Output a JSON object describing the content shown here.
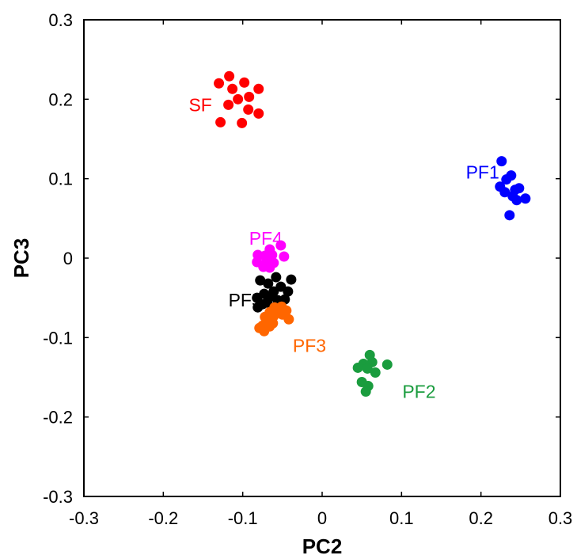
{
  "chart_data": {
    "type": "scatter",
    "title": "",
    "xlabel": "PC2",
    "ylabel": "PC3",
    "xlim": [
      -0.3,
      0.3
    ],
    "ylim": [
      -0.3,
      0.3
    ],
    "x_ticks": [
      -0.3,
      -0.2,
      -0.1,
      0,
      0.1,
      0.2,
      0.3
    ],
    "y_ticks": [
      -0.3,
      -0.2,
      -0.1,
      0,
      0.1,
      0.2,
      0.3
    ],
    "x_tick_labels": [
      "-0.3",
      "-0.2",
      "-0.1",
      "0",
      "0.1",
      "0.2",
      "0.3"
    ],
    "y_tick_labels": [
      "-0.3",
      "-0.2",
      "-0.1",
      "0",
      "0.1",
      "0.2",
      "0.3"
    ],
    "grid": false,
    "series": [
      {
        "name": "SF",
        "color": "#ff0000",
        "points": [
          [
            -0.13,
            0.22
          ],
          [
            -0.117,
            0.229
          ],
          [
            -0.113,
            0.213
          ],
          [
            -0.098,
            0.221
          ],
          [
            -0.08,
            0.213
          ],
          [
            -0.092,
            0.203
          ],
          [
            -0.106,
            0.2
          ],
          [
            -0.118,
            0.193
          ],
          [
            -0.093,
            0.187
          ],
          [
            -0.08,
            0.182
          ],
          [
            -0.128,
            0.171
          ],
          [
            -0.101,
            0.17
          ]
        ]
      },
      {
        "name": "PF1",
        "color": "#0000ff",
        "points": [
          [
            0.226,
            0.122
          ],
          [
            0.238,
            0.104
          ],
          [
            0.232,
            0.099
          ],
          [
            0.243,
            0.086
          ],
          [
            0.224,
            0.09
          ],
          [
            0.23,
            0.083
          ],
          [
            0.248,
            0.088
          ],
          [
            0.24,
            0.078
          ],
          [
            0.256,
            0.075
          ],
          [
            0.245,
            0.073
          ],
          [
            0.236,
            0.054
          ]
        ]
      },
      {
        "name": "PF4",
        "color": "#ff00ff",
        "points": [
          [
            -0.052,
            0.016
          ],
          [
            -0.066,
            0.011
          ],
          [
            -0.081,
            0.004
          ],
          [
            -0.072,
            0.003
          ],
          [
            -0.063,
            0.004
          ],
          [
            -0.048,
            0.002
          ],
          [
            -0.082,
            -0.005
          ],
          [
            -0.07,
            -0.005
          ],
          [
            -0.061,
            -0.006
          ],
          [
            -0.074,
            -0.011
          ],
          [
            -0.066,
            -0.012
          ]
        ]
      },
      {
        "name": "PF5",
        "color": "#000000",
        "points": [
          [
            -0.058,
            -0.024
          ],
          [
            -0.078,
            -0.028
          ],
          [
            -0.068,
            -0.032
          ],
          [
            -0.039,
            -0.027
          ],
          [
            -0.052,
            -0.036
          ],
          [
            -0.061,
            -0.042
          ],
          [
            -0.043,
            -0.042
          ],
          [
            -0.073,
            -0.045
          ],
          [
            -0.082,
            -0.05
          ],
          [
            -0.064,
            -0.048
          ],
          [
            -0.047,
            -0.052
          ],
          [
            -0.056,
            -0.053
          ],
          [
            -0.081,
            -0.062
          ],
          [
            -0.069,
            -0.056
          ],
          [
            -0.075,
            -0.058
          ]
        ]
      },
      {
        "name": "PF3",
        "color": "#ff6600",
        "points": [
          [
            -0.06,
            -0.062
          ],
          [
            -0.051,
            -0.061
          ],
          [
            -0.066,
            -0.068
          ],
          [
            -0.055,
            -0.065
          ],
          [
            -0.045,
            -0.066
          ],
          [
            -0.072,
            -0.074
          ],
          [
            -0.061,
            -0.073
          ],
          [
            -0.05,
            -0.071
          ],
          [
            -0.042,
            -0.077
          ],
          [
            -0.068,
            -0.082
          ],
          [
            -0.075,
            -0.085
          ],
          [
            -0.062,
            -0.082
          ],
          [
            -0.073,
            -0.092
          ],
          [
            -0.079,
            -0.088
          ],
          [
            -0.066,
            -0.086
          ]
        ]
      },
      {
        "name": "PF2",
        "color": "#1a9c3e",
        "points": [
          [
            0.06,
            -0.122
          ],
          [
            0.063,
            -0.131
          ],
          [
            0.052,
            -0.133
          ],
          [
            0.082,
            -0.134
          ],
          [
            0.045,
            -0.138
          ],
          [
            0.057,
            -0.139
          ],
          [
            0.067,
            -0.144
          ],
          [
            0.05,
            -0.156
          ],
          [
            0.058,
            -0.161
          ],
          [
            0.055,
            -0.168
          ]
        ]
      }
    ],
    "annotations": [
      {
        "text": "SF",
        "x": -0.168,
        "y": 0.193,
        "color": "#ff0000"
      },
      {
        "text": "PF1",
        "x": 0.181,
        "y": 0.108,
        "color": "#0000ff"
      },
      {
        "text": "PF4",
        "x": -0.092,
        "y": 0.025,
        "color": "#ff00ff"
      },
      {
        "text": "PF5",
        "x": -0.118,
        "y": -0.053,
        "color": "#000000"
      },
      {
        "text": "PF3",
        "x": -0.037,
        "y": -0.11,
        "color": "#ff6600"
      },
      {
        "text": "PF2",
        "x": 0.101,
        "y": -0.168,
        "color": "#1a9c3e"
      }
    ]
  }
}
